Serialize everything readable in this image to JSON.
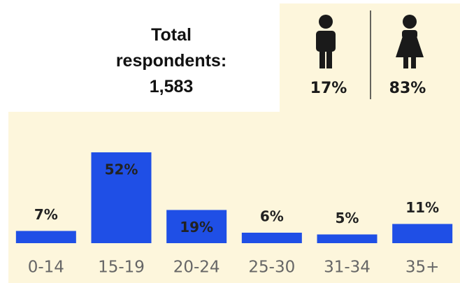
{
  "summary": {
    "label": "Total respondents:",
    "total": "1,583"
  },
  "gender": [
    {
      "label": "17%"
    },
    {
      "label": "83%"
    }
  ],
  "chart_data": {
    "type": "bar",
    "categories": [
      "0-14",
      "15-19",
      "20-24",
      "25-30",
      "31-34",
      "35+"
    ],
    "values": [
      7,
      52,
      19,
      6,
      5,
      11
    ],
    "value_labels": [
      "7%",
      "52%",
      "19%",
      "6%",
      "5%",
      "11%"
    ],
    "color": "#1f4fe6",
    "ylim": [
      0,
      60
    ]
  }
}
